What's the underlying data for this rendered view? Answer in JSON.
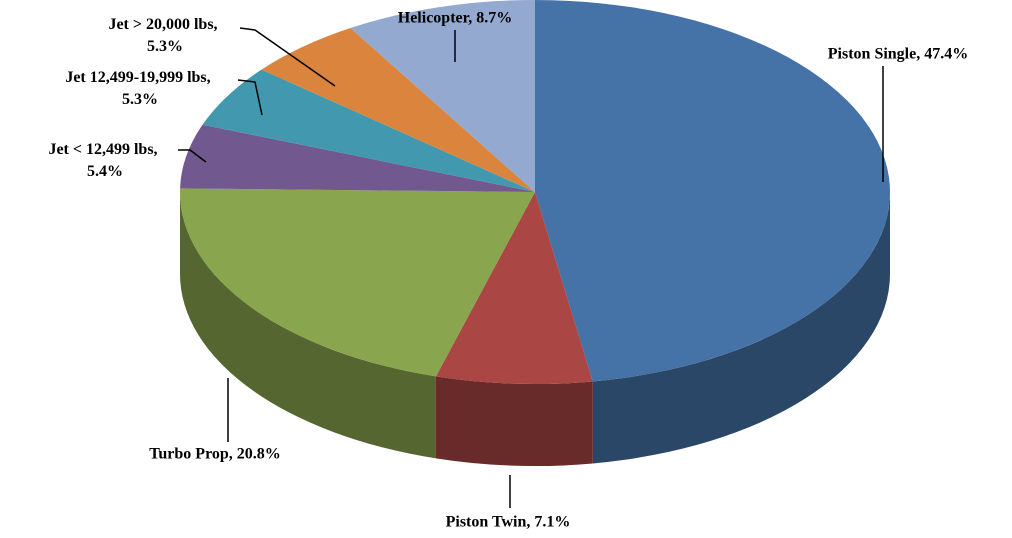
{
  "chart_data": {
    "type": "pie",
    "values": [
      47.4,
      7.1,
      20.8,
      5.4,
      5.3,
      5.3,
      8.7
    ],
    "value_labels": [
      "Piston Single, 47.4%",
      "Piston Twin, 7.1%",
      "Turbo Prop, 20.8%",
      "Jet < 12,499 lbs, 5.4%",
      "Jet 12,499-19,999 lbs, 5.3%",
      "Jet > 20,000 lbs, 5.3%",
      "Helicopter, 8.7%"
    ],
    "colors": [
      "#4572a7",
      "#aa4643",
      "#89a54e",
      "#71588f",
      "#4198af",
      "#db843d",
      "#93a9cf"
    ]
  }
}
